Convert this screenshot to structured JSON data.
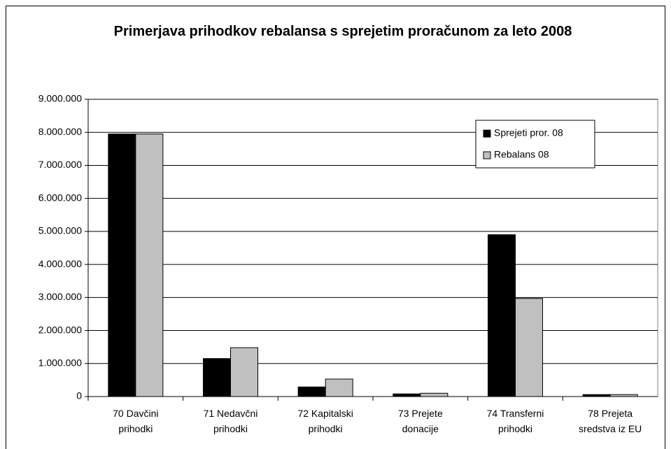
{
  "chart_data": {
    "type": "bar",
    "title": "Primerjava prihodkov  rebalansa s sprejetim proračunom za leto 2008",
    "categories": [
      "70 Davčini\nprihodki",
      "71 Nedavčni\nprihodki",
      "72 Kapitalski\nprihodki",
      "73 Prejete\ndonacije",
      "74 Transferni\nprihodki",
      "78 Prejeta\nsredstva iz EU"
    ],
    "series": [
      {
        "name": "Sprejeti pror. 08",
        "color": "#000000",
        "values": [
          7950000,
          1150000,
          290000,
          80000,
          4900000,
          60000
        ]
      },
      {
        "name": "Rebalans 08",
        "color": "#c0c0c0",
        "values": [
          7950000,
          1480000,
          530000,
          100000,
          2970000,
          60000
        ]
      }
    ],
    "ylim": [
      0,
      9000000
    ],
    "yticks": [
      0,
      {
        "value": 1000000,
        "label": "1.000.000"
      },
      {
        "value": 2000000,
        "label": "2.000.000"
      },
      {
        "value": 3000000,
        "label": "3.000.000"
      },
      {
        "value": 4000000,
        "label": "4.000.000"
      },
      {
        "value": 5000000,
        "label": "5.000.000"
      },
      {
        "value": 6000000,
        "label": "6.000.000"
      },
      {
        "value": 7000000,
        "label": "7.000.000"
      },
      {
        "value": 8000000,
        "label": "8.000.000"
      },
      {
        "value": 9000000,
        "label": "9.000.000"
      }
    ],
    "grid": true,
    "legend": "upper right"
  }
}
